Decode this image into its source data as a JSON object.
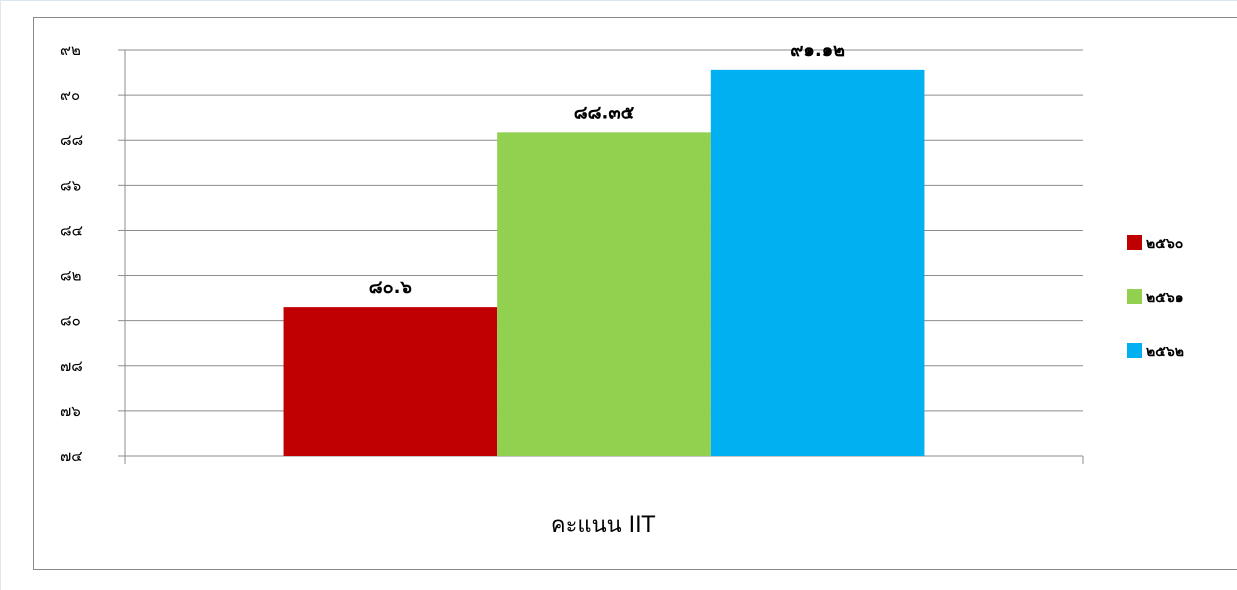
{
  "chart_data": {
    "type": "bar",
    "categories": [
      "คะแนน IIT"
    ],
    "series": [
      {
        "name": "๒๕๖๐",
        "values": [
          80.6
        ],
        "label": "๘๐.๖",
        "color": "#c00000"
      },
      {
        "name": "๒๕๖๑",
        "values": [
          88.35
        ],
        "label": "๘๘.๓๕",
        "color": "#92d050"
      },
      {
        "name": "๒๕๖๒",
        "values": [
          91.12
        ],
        "label": "๙๑.๑๒",
        "color": "#00b0f0"
      }
    ],
    "title": "",
    "xlabel": "",
    "ylabel": "",
    "ylim": [
      74,
      92
    ],
    "yticks": [
      74,
      76,
      78,
      80,
      82,
      84,
      86,
      88,
      90,
      92
    ],
    "ytick_labels": [
      "๗๔",
      "๗๖",
      "๗๘",
      "๘๐",
      "๘๒",
      "๘๔",
      "๘๖",
      "๘๘",
      "๙๐",
      "๙๒"
    ],
    "grid": true,
    "legend_position": "right"
  }
}
